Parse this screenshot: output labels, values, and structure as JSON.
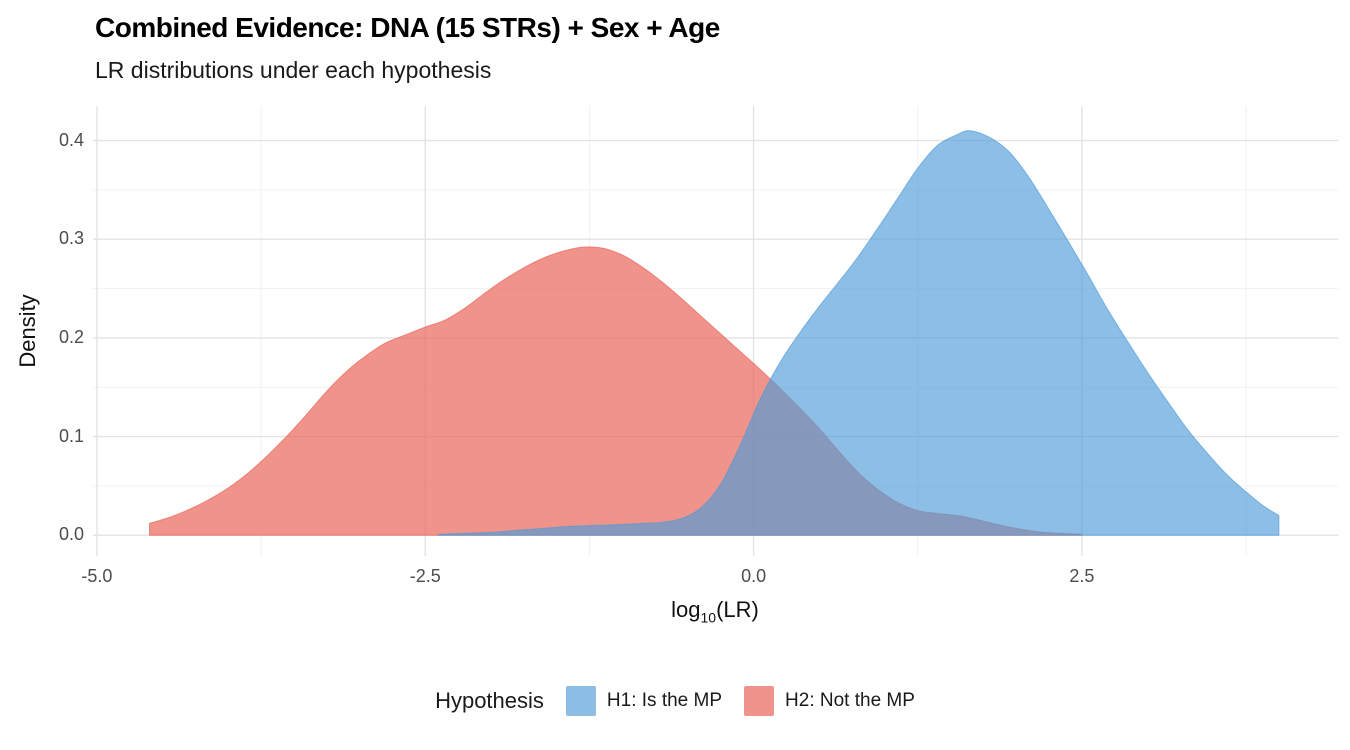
{
  "header": {
    "title": "Combined Evidence: DNA (15 STRs) + Sex + Age",
    "subtitle": "LR distributions under each hypothesis"
  },
  "axes": {
    "x": {
      "label_prefix": "log",
      "label_sub": "10",
      "label_suffix": "(LR)",
      "tick_values": [
        -5.0,
        -2.5,
        0.0,
        2.5
      ],
      "tick_labels": [
        "-5.0",
        "-2.5",
        "0.0",
        "2.5"
      ],
      "minor_values": [
        -3.75,
        -1.25,
        1.25,
        3.75
      ]
    },
    "y": {
      "label": "Density",
      "tick_values": [
        0.0,
        0.1,
        0.2,
        0.3,
        0.4
      ],
      "tick_labels": [
        "0.0",
        "0.1",
        "0.2",
        "0.3",
        "0.4"
      ],
      "minor_values": [
        0.05,
        0.15,
        0.25,
        0.35
      ]
    }
  },
  "legend": {
    "title": "Hypothesis",
    "items": [
      {
        "label": "H1: Is the MP",
        "color": "#8CBEE5"
      },
      {
        "label": "H2: Not the MP",
        "color": "#F0948B"
      }
    ]
  },
  "colors": {
    "major_grid": "#e3e3e3",
    "minor_grid": "#f1f1f1",
    "background": "#ffffff",
    "h1_fill": "rgba(78,155,216,0.65)",
    "h2_fill": "rgba(234,106,94,0.72)"
  },
  "chart_data": {
    "type": "area",
    "title": "Combined Evidence: DNA (15 STRs) + Sex + Age",
    "subtitle": "LR distributions under each hypothesis",
    "xlabel": "log10(LR)",
    "ylabel": "Density",
    "xlim": [
      -5.03,
      4.45
    ],
    "ylim": [
      -0.021,
      0.435
    ],
    "grid": true,
    "legend_position": "bottom",
    "legend_title": "Hypothesis",
    "draw_order": [
      1,
      0
    ],
    "series": [
      {
        "name": "H1: Is the MP",
        "fill": "rgba(78,155,216,0.65)",
        "points": [
          [
            -2.4,
            0.001
          ],
          [
            -2.2,
            0.002
          ],
          [
            -2.0,
            0.003
          ],
          [
            -1.8,
            0.005
          ],
          [
            -1.6,
            0.007
          ],
          [
            -1.4,
            0.009
          ],
          [
            -1.2,
            0.01
          ],
          [
            -1.0,
            0.011
          ],
          [
            -0.85,
            0.012
          ],
          [
            -0.7,
            0.013
          ],
          [
            -0.55,
            0.017
          ],
          [
            -0.4,
            0.028
          ],
          [
            -0.25,
            0.052
          ],
          [
            -0.1,
            0.092
          ],
          [
            0.05,
            0.138
          ],
          [
            0.2,
            0.175
          ],
          [
            0.35,
            0.205
          ],
          [
            0.5,
            0.232
          ],
          [
            0.65,
            0.257
          ],
          [
            0.8,
            0.283
          ],
          [
            0.95,
            0.312
          ],
          [
            1.1,
            0.342
          ],
          [
            1.25,
            0.372
          ],
          [
            1.4,
            0.395
          ],
          [
            1.55,
            0.406
          ],
          [
            1.65,
            0.41
          ],
          [
            1.8,
            0.403
          ],
          [
            1.95,
            0.388
          ],
          [
            2.1,
            0.362
          ],
          [
            2.25,
            0.33
          ],
          [
            2.4,
            0.297
          ],
          [
            2.55,
            0.263
          ],
          [
            2.7,
            0.228
          ],
          [
            2.85,
            0.196
          ],
          [
            3.0,
            0.165
          ],
          [
            3.15,
            0.136
          ],
          [
            3.3,
            0.108
          ],
          [
            3.45,
            0.084
          ],
          [
            3.6,
            0.062
          ],
          [
            3.75,
            0.044
          ],
          [
            3.88,
            0.03
          ],
          [
            4.0,
            0.02
          ]
        ]
      },
      {
        "name": "H2: Not the MP",
        "fill": "rgba(234,106,94,0.72)",
        "points": [
          [
            -4.6,
            0.012
          ],
          [
            -4.45,
            0.018
          ],
          [
            -4.3,
            0.026
          ],
          [
            -4.15,
            0.036
          ],
          [
            -4.0,
            0.048
          ],
          [
            -3.85,
            0.063
          ],
          [
            -3.7,
            0.081
          ],
          [
            -3.55,
            0.101
          ],
          [
            -3.4,
            0.123
          ],
          [
            -3.25,
            0.146
          ],
          [
            -3.1,
            0.166
          ],
          [
            -2.95,
            0.182
          ],
          [
            -2.8,
            0.195
          ],
          [
            -2.65,
            0.203
          ],
          [
            -2.5,
            0.211
          ],
          [
            -2.35,
            0.218
          ],
          [
            -2.2,
            0.23
          ],
          [
            -2.05,
            0.245
          ],
          [
            -1.9,
            0.259
          ],
          [
            -1.75,
            0.271
          ],
          [
            -1.6,
            0.281
          ],
          [
            -1.45,
            0.288
          ],
          [
            -1.3,
            0.292
          ],
          [
            -1.15,
            0.291
          ],
          [
            -1.0,
            0.284
          ],
          [
            -0.85,
            0.272
          ],
          [
            -0.7,
            0.257
          ],
          [
            -0.55,
            0.24
          ],
          [
            -0.4,
            0.222
          ],
          [
            -0.25,
            0.204
          ],
          [
            -0.1,
            0.186
          ],
          [
            0.05,
            0.168
          ],
          [
            0.2,
            0.149
          ],
          [
            0.35,
            0.129
          ],
          [
            0.5,
            0.108
          ],
          [
            0.65,
            0.085
          ],
          [
            0.8,
            0.063
          ],
          [
            0.95,
            0.046
          ],
          [
            1.1,
            0.033
          ],
          [
            1.25,
            0.025
          ],
          [
            1.4,
            0.022
          ],
          [
            1.55,
            0.02
          ],
          [
            1.7,
            0.016
          ],
          [
            1.85,
            0.011
          ],
          [
            2.0,
            0.007
          ],
          [
            2.2,
            0.003
          ],
          [
            2.5,
            0.001
          ]
        ]
      }
    ]
  }
}
